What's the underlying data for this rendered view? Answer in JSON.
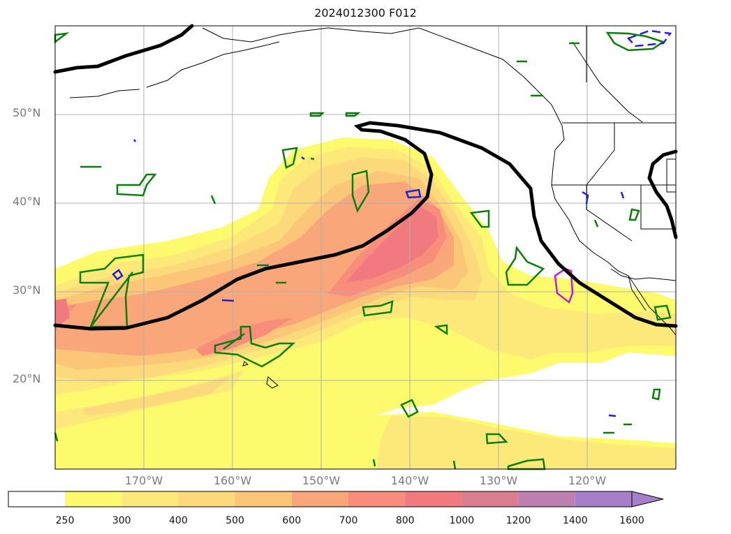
{
  "title": "2024012300 F012",
  "lat_labels": [
    "50°N",
    "40°N",
    "30°N",
    "20°N"
  ],
  "lon_labels": [
    "170°W",
    "160°W",
    "150°W",
    "140°W",
    "130°W",
    "120°W"
  ],
  "colorbar": {
    "ticks": [
      "250",
      "300",
      "400",
      "500",
      "600",
      "700",
      "800",
      "1000",
      "1200",
      "1400",
      "1600"
    ],
    "colors": [
      "#ffffff",
      "#fdfa6e",
      "#fde97a",
      "#fcd97b",
      "#fbc677",
      "#f9a77a",
      "#f88d7b",
      "#f07a7f",
      "#d97e8e",
      "#bd80b1",
      "#a67ec9"
    ],
    "extend": "max"
  },
  "map": {
    "projection": "plate carree",
    "lon_range": [
      "180°W",
      "110°W"
    ],
    "lat_range": [
      "10°N",
      "60°N"
    ],
    "contour_colors": {
      "black": "#000000",
      "green": "#0a7d0a",
      "blue": "#1f1fdd",
      "magenta": "#c21ec2"
    }
  }
}
